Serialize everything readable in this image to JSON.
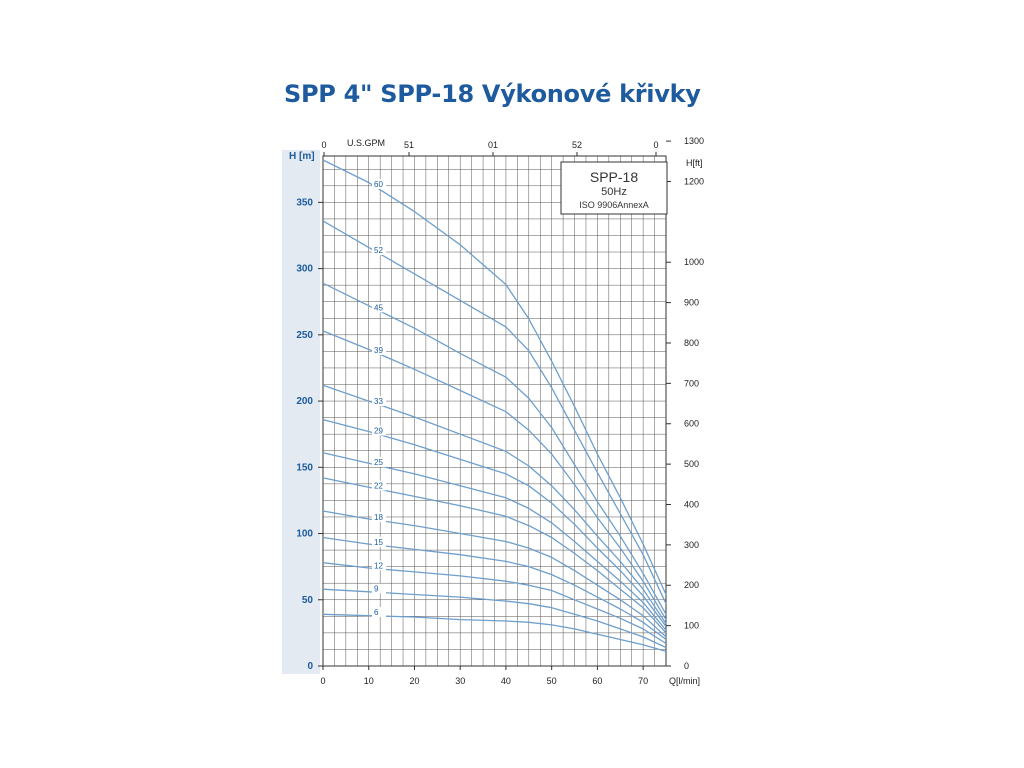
{
  "title": "SPP 4\" SPP-18 Výkonové křivky",
  "colors": {
    "title": "#1d5a9e",
    "curve": "#6e9fcc",
    "grid": "#555555",
    "axis_band": "#e3eaf1"
  },
  "chart_data": {
    "type": "line",
    "title": "SPP 4\" SPP-18 Výkonové křivky",
    "legend_box": {
      "model": "SPP-18",
      "frequency": "50Hz",
      "standard": "ISO 9906AnnexA",
      "placement": "top-right"
    },
    "xlabel": "Q[l/min]",
    "ylabel": "H [m]",
    "ylabel_right": "H[ft]",
    "xlabel_top": "U.S.GPM",
    "xlim": [
      0,
      75
    ],
    "ylim": [
      0,
      385
    ],
    "x_ticks": [
      0,
      10,
      20,
      30,
      40,
      50,
      60,
      70
    ],
    "y_ticks": [
      0,
      50,
      100,
      150,
      200,
      250,
      300,
      350
    ],
    "right_ticks": [
      "0",
      "100",
      "200",
      "300",
      "400",
      "500",
      "600",
      "700",
      "800",
      "900",
      "1000",
      "1200",
      "1300"
    ],
    "top_ticks": [
      "0",
      "51",
      "01",
      "52",
      "0"
    ],
    "grid": true,
    "x": [
      0,
      10,
      20,
      30,
      40,
      45,
      50,
      55,
      60,
      65,
      70,
      75
    ],
    "series": [
      {
        "name": "60",
        "values": [
          382,
          365,
          343,
          318,
          288,
          262,
          230,
          196,
          160,
          127,
          92,
          54
        ]
      },
      {
        "name": "52",
        "values": [
          336,
          316,
          296,
          276,
          256,
          238,
          210,
          178,
          146,
          115,
          84,
          47
        ]
      },
      {
        "name": "45",
        "values": [
          289,
          272,
          255,
          236,
          218,
          202,
          180,
          152,
          124,
          98,
          70,
          39
        ]
      },
      {
        "name": "39",
        "values": [
          253,
          239,
          224,
          208,
          192,
          178,
          160,
          137,
          112,
          89,
          64,
          35
        ]
      },
      {
        "name": "33",
        "values": [
          212,
          200,
          188,
          175,
          162,
          151,
          136,
          118,
          98,
          79,
          58,
          32
        ]
      },
      {
        "name": "29",
        "values": [
          186,
          177,
          167,
          156,
          145,
          136,
          123,
          107,
          89,
          72,
          53,
          30
        ]
      },
      {
        "name": "25",
        "values": [
          161,
          153,
          145,
          136,
          127,
          119,
          108,
          94,
          79,
          64,
          48,
          27
        ]
      },
      {
        "name": "22",
        "values": [
          142,
          135,
          128,
          121,
          113,
          106,
          97,
          85,
          72,
          58,
          44,
          25
        ]
      },
      {
        "name": "18",
        "values": [
          117,
          111,
          106,
          100,
          94,
          89,
          82,
          72,
          61,
          50,
          38,
          22
        ]
      },
      {
        "name": "15",
        "values": [
          97,
          92,
          88,
          84,
          79,
          75,
          69,
          61,
          52,
          43,
          33,
          20
        ]
      },
      {
        "name": "12",
        "values": [
          78,
          74,
          71,
          68,
          64,
          61,
          57,
          50,
          43,
          36,
          28,
          17
        ]
      },
      {
        "name": "9",
        "values": [
          58,
          56,
          54,
          52,
          49,
          47,
          44,
          39,
          34,
          28,
          22,
          14
        ]
      },
      {
        "name": "6",
        "values": [
          39,
          38,
          37,
          35,
          34,
          33,
          31,
          28,
          24,
          20,
          16,
          11
        ]
      }
    ]
  }
}
